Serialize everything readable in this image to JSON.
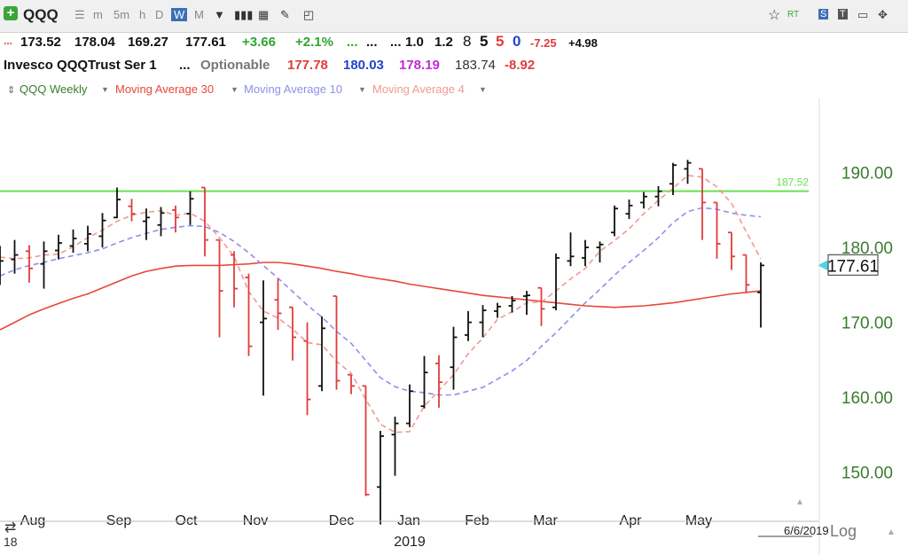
{
  "toolbar": {
    "symbol": "QQQ",
    "intervals": [
      "m",
      "5m",
      "h",
      "D",
      "W",
      "M"
    ],
    "active_interval": "W",
    "icons": [
      "plus-icon",
      "list-icon",
      "bars-icon",
      "grid-icon",
      "pencil-icon",
      "note-icon",
      "star-icon",
      "rt-icon",
      "settings-icon",
      "text-icon",
      "layout-icon",
      "move-icon"
    ]
  },
  "quote": {
    "open": "173.52",
    "high": "178.04",
    "low": "169.27",
    "close": "177.61",
    "change": "+3.66",
    "change_pct": "+2.1%",
    "dots1": "...",
    "dots2": "...",
    "dots3": "...",
    "v1": "1.0",
    "v2": "1.2",
    "n8": "8",
    "n5a": "5",
    "n5b": "5",
    "n0": "0",
    "neg": "-7.25",
    "pos": "+4.98"
  },
  "info": {
    "name": "Invesco QQQTrust Ser 1",
    "dots": "...",
    "optionable": "Optionable",
    "p1": "177.78",
    "p2": "180.03",
    "p3": "178.19",
    "p4": "183.74",
    "p5": "-8.92"
  },
  "legend": {
    "main": "QQQ Weekly",
    "ma30": "Moving Average 30",
    "ma10": "Moving Average 10",
    "ma4": "Moving Average 4"
  },
  "colors": {
    "up": "#111111",
    "down": "#e03c3c",
    "ma30": "#e8473a",
    "ma10": "#8f90e8",
    "ma4": "#f09a94",
    "hline": "#66e24f",
    "axis": "#3a7d2e",
    "marker": "#55d0e6"
  },
  "chart_data": {
    "type": "ohlc",
    "ylim": [
      142,
      196
    ],
    "y_ticks": [
      "190.00",
      "180.00",
      "170.00",
      "160.00",
      "150.00"
    ],
    "x_ticks": [
      "Aug",
      "Sep",
      "Oct",
      "Nov",
      "Dec",
      "Jan",
      "Feb",
      "Mar",
      "Apr",
      "May"
    ],
    "year_label": "2019",
    "left_partial_label": "18",
    "date_label": "6/6/2019",
    "scale_label": "Log",
    "last_price_label": "177.61",
    "last_price": 177.61,
    "hline": {
      "value": 187.52,
      "label": "187.52"
    },
    "bars": [
      {
        "o": 177.6,
        "h": 180.2,
        "l": 175.0,
        "c": 178.2
      },
      {
        "o": 178.4,
        "h": 181.0,
        "l": 176.5,
        "c": 179.0
      },
      {
        "o": 179.5,
        "h": 180.3,
        "l": 175.3,
        "c": 177.2
      },
      {
        "o": 177.8,
        "h": 180.8,
        "l": 174.5,
        "c": 179.5
      },
      {
        "o": 179.6,
        "h": 181.7,
        "l": 178.4,
        "c": 180.6
      },
      {
        "o": 180.2,
        "h": 182.4,
        "l": 179.3,
        "c": 181.2
      },
      {
        "o": 180.5,
        "h": 182.9,
        "l": 179.5,
        "c": 181.8
      },
      {
        "o": 181.5,
        "h": 184.6,
        "l": 180.0,
        "c": 183.6
      },
      {
        "o": 184.0,
        "h": 188.0,
        "l": 183.9,
        "c": 186.4
      },
      {
        "o": 185.5,
        "h": 186.5,
        "l": 183.5,
        "c": 184.5
      },
      {
        "o": 183.5,
        "h": 185.2,
        "l": 181.0,
        "c": 184.0
      },
      {
        "o": 183.0,
        "h": 185.4,
        "l": 181.5,
        "c": 184.6
      },
      {
        "o": 185.0,
        "h": 185.6,
        "l": 182.0,
        "c": 184.0
      },
      {
        "o": 184.5,
        "h": 187.5,
        "l": 183.0,
        "c": 186.5
      },
      {
        "o": 188.0,
        "h": 188.0,
        "l": 178.8,
        "c": 181.0
      },
      {
        "o": 181.0,
        "h": 181.0,
        "l": 168.0,
        "c": 174.2
      },
      {
        "o": 179.0,
        "h": 179.5,
        "l": 172.0,
        "c": 174.5
      },
      {
        "o": 176.0,
        "h": 176.5,
        "l": 165.5,
        "c": 166.8
      },
      {
        "o": 170.0,
        "h": 175.6,
        "l": 160.2,
        "c": 170.5
      },
      {
        "o": 173.0,
        "h": 175.8,
        "l": 169.0,
        "c": 171.2
      },
      {
        "o": 172.0,
        "h": 172.0,
        "l": 164.9,
        "c": 168.0
      },
      {
        "o": 167.5,
        "h": 170.0,
        "l": 157.6,
        "c": 159.7
      },
      {
        "o": 161.5,
        "h": 170.8,
        "l": 160.8,
        "c": 169.2
      },
      {
        "o": 173.5,
        "h": 173.5,
        "l": 161.0,
        "c": 162.2
      },
      {
        "o": 163.0,
        "h": 163.0,
        "l": 160.4,
        "c": 161.5
      },
      {
        "o": 161.5,
        "h": 161.5,
        "l": 146.8,
        "c": 147.0
      },
      {
        "o": 148.0,
        "h": 155.5,
        "l": 143.0,
        "c": 154.8
      },
      {
        "o": 155.0,
        "h": 157.4,
        "l": 149.5,
        "c": 156.5
      },
      {
        "o": 156.5,
        "h": 161.7,
        "l": 156.0,
        "c": 160.8
      },
      {
        "o": 158.8,
        "h": 165.5,
        "l": 158.5,
        "c": 163.3
      },
      {
        "o": 164.5,
        "h": 165.6,
        "l": 158.6,
        "c": 162.0
      },
      {
        "o": 164.0,
        "h": 169.4,
        "l": 161.0,
        "c": 168.0
      },
      {
        "o": 168.3,
        "h": 171.5,
        "l": 167.5,
        "c": 170.0
      },
      {
        "o": 170.0,
        "h": 172.3,
        "l": 168.0,
        "c": 171.6
      },
      {
        "o": 171.5,
        "h": 172.6,
        "l": 170.6,
        "c": 172.1
      },
      {
        "o": 172.2,
        "h": 173.5,
        "l": 171.3,
        "c": 172.9
      },
      {
        "o": 173.5,
        "h": 174.2,
        "l": 171.0,
        "c": 173.6
      },
      {
        "o": 174.6,
        "h": 174.6,
        "l": 169.5,
        "c": 171.8
      },
      {
        "o": 172.0,
        "h": 179.2,
        "l": 171.6,
        "c": 178.6
      },
      {
        "o": 178.2,
        "h": 182.0,
        "l": 177.5,
        "c": 178.8
      },
      {
        "o": 178.6,
        "h": 181.0,
        "l": 177.5,
        "c": 180.0
      },
      {
        "o": 180.0,
        "h": 180.8,
        "l": 178.0,
        "c": 180.4
      },
      {
        "o": 182.0,
        "h": 185.6,
        "l": 181.5,
        "c": 185.2
      },
      {
        "o": 184.5,
        "h": 186.4,
        "l": 183.8,
        "c": 185.6
      },
      {
        "o": 186.0,
        "h": 187.4,
        "l": 185.2,
        "c": 186.8
      },
      {
        "o": 186.8,
        "h": 188.2,
        "l": 185.5,
        "c": 187.5
      },
      {
        "o": 188.5,
        "h": 191.3,
        "l": 187.0,
        "c": 191.0
      },
      {
        "o": 190.5,
        "h": 191.7,
        "l": 188.5,
        "c": 191.3
      },
      {
        "o": 190.5,
        "h": 190.5,
        "l": 181.0,
        "c": 186.0
      },
      {
        "o": 186.0,
        "h": 186.0,
        "l": 178.5,
        "c": 180.5
      },
      {
        "o": 182.0,
        "h": 182.0,
        "l": 177.0,
        "c": 178.8
      },
      {
        "o": 179.0,
        "h": 179.0,
        "l": 174.0,
        "c": 175.0
      },
      {
        "o": 174.0,
        "h": 178.0,
        "l": 169.3,
        "c": 177.6
      }
    ],
    "ma30": [
      169.0,
      170.0,
      171.0,
      171.8,
      172.5,
      173.2,
      173.8,
      174.6,
      175.4,
      176.2,
      176.8,
      177.2,
      177.5,
      177.6,
      177.6,
      177.6,
      177.7,
      177.8,
      178.0,
      178.0,
      177.8,
      177.5,
      177.2,
      176.8,
      176.5,
      176.1,
      175.8,
      175.5,
      175.1,
      174.8,
      174.5,
      174.2,
      173.9,
      173.6,
      173.4,
      173.2,
      173.0,
      172.8,
      172.6,
      172.4,
      172.2,
      172.1,
      172.0,
      172.1,
      172.2,
      172.4,
      172.6,
      172.9,
      173.2,
      173.5,
      173.8,
      174.0,
      174.2
    ],
    "ma10": [
      176.2,
      177.0,
      177.6,
      178.0,
      178.5,
      178.9,
      179.3,
      179.8,
      180.6,
      181.3,
      181.9,
      182.4,
      182.7,
      182.9,
      182.8,
      182.0,
      180.8,
      179.3,
      177.6,
      175.9,
      174.1,
      172.3,
      170.7,
      168.8,
      167.2,
      164.9,
      162.6,
      161.4,
      160.8,
      160.6,
      160.3,
      160.3,
      160.8,
      161.3,
      162.4,
      163.5,
      164.9,
      166.8,
      168.6,
      170.6,
      172.6,
      174.4,
      176.3,
      178.0,
      179.6,
      181.3,
      183.3,
      184.8,
      185.3,
      185.1,
      184.6,
      184.3,
      184.1
    ],
    "ma4": [
      178.7,
      178.5,
      178.6,
      179.0,
      179.1,
      180.1,
      181.3,
      182.3,
      183.5,
      184.3,
      184.7,
      184.9,
      184.3,
      184.6,
      183.5,
      181.3,
      178.8,
      174.1,
      171.5,
      170.6,
      169.1,
      167.3,
      167.0,
      164.8,
      163.2,
      159.7,
      156.4,
      155.3,
      155.4,
      158.8,
      160.9,
      163.0,
      165.8,
      167.9,
      170.4,
      171.4,
      172.6,
      172.7,
      174.2,
      175.8,
      177.2,
      179.5,
      180.9,
      182.5,
      184.5,
      186.3,
      187.9,
      189.6,
      189.4,
      188.1,
      185.9,
      182.1,
      178.5
    ]
  }
}
